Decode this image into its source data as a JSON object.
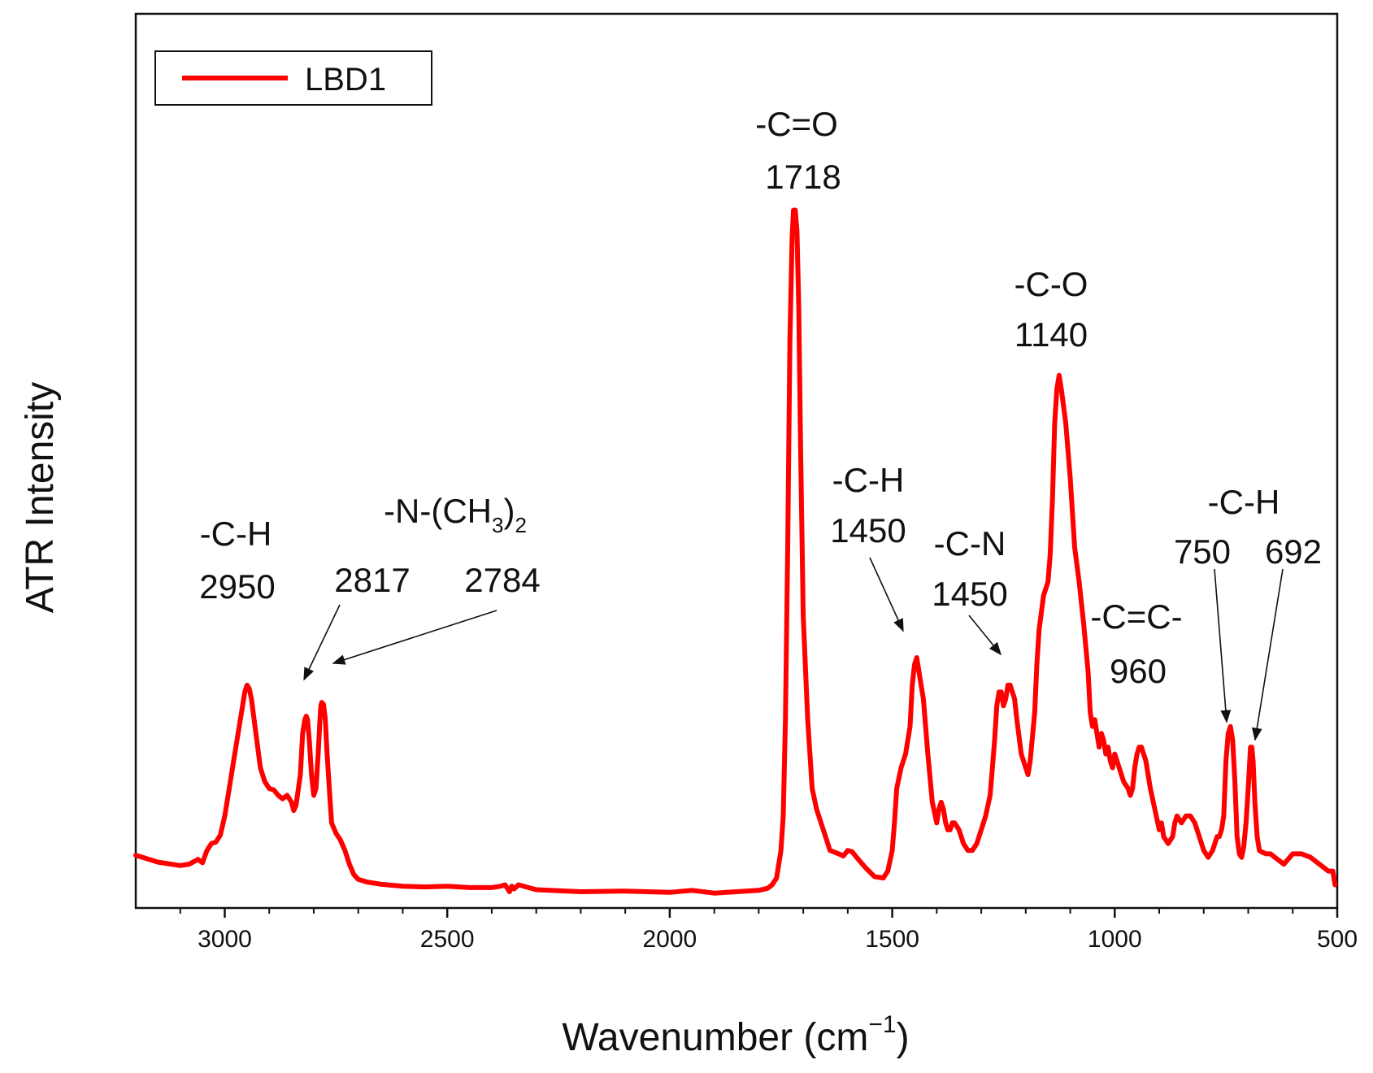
{
  "chart_data": {
    "type": "line",
    "xlabel": "Wavenumber (cm",
    "xlabel_sup": "−1",
    "xlabel_end": ")",
    "ylabel": "ATR Intensity",
    "xlim": [
      3200,
      500
    ],
    "x_reversed": true,
    "ylim": [
      0,
      1
    ],
    "y_tick_labels_shown": false,
    "x_ticks": [
      3000,
      2500,
      2000,
      1500,
      1000,
      500
    ],
    "legend": {
      "position": "top-left",
      "label": "LBD1"
    },
    "series": [
      {
        "name": "LBD1",
        "color": "#ff0000",
        "x": [
          3200,
          3150,
          3100,
          3080,
          3060,
          3050,
          3040,
          3030,
          3020,
          3010,
          3000,
          2990,
          2980,
          2970,
          2960,
          2955,
          2950,
          2945,
          2940,
          2930,
          2920,
          2910,
          2900,
          2890,
          2880,
          2870,
          2860,
          2850,
          2845,
          2840,
          2830,
          2825,
          2820,
          2817,
          2814,
          2810,
          2805,
          2800,
          2795,
          2790,
          2786,
          2784,
          2782,
          2778,
          2774,
          2770,
          2765,
          2760,
          2750,
          2740,
          2730,
          2720,
          2710,
          2700,
          2680,
          2650,
          2600,
          2550,
          2500,
          2450,
          2400,
          2380,
          2370,
          2360,
          2355,
          2350,
          2340,
          2300,
          2200,
          2100,
          2000,
          1950,
          1900,
          1850,
          1800,
          1780,
          1770,
          1760,
          1750,
          1745,
          1740,
          1735,
          1730,
          1725,
          1722,
          1718,
          1714,
          1710,
          1706,
          1700,
          1690,
          1680,
          1670,
          1660,
          1650,
          1640,
          1620,
          1610,
          1600,
          1590,
          1580,
          1560,
          1540,
          1520,
          1510,
          1500,
          1495,
          1490,
          1480,
          1470,
          1460,
          1455,
          1450,
          1445,
          1440,
          1430,
          1420,
          1410,
          1400,
          1395,
          1390,
          1385,
          1380,
          1375,
          1370,
          1365,
          1360,
          1350,
          1340,
          1330,
          1320,
          1310,
          1300,
          1290,
          1280,
          1275,
          1270,
          1265,
          1260,
          1255,
          1250,
          1245,
          1240,
          1235,
          1230,
          1225,
          1220,
          1210,
          1200,
          1195,
          1190,
          1180,
          1175,
          1170,
          1160,
          1150,
          1145,
          1140,
          1135,
          1130,
          1125,
          1120,
          1110,
          1100,
          1090,
          1080,
          1070,
          1060,
          1055,
          1050,
          1045,
          1040,
          1035,
          1030,
          1025,
          1020,
          1015,
          1010,
          1005,
          1000,
          990,
          980,
          970,
          965,
          960,
          955,
          950,
          945,
          940,
          930,
          920,
          910,
          900,
          895,
          890,
          880,
          870,
          865,
          860,
          850,
          840,
          830,
          820,
          810,
          800,
          790,
          780,
          770,
          765,
          760,
          755,
          750,
          745,
          740,
          735,
          730,
          725,
          720,
          715,
          710,
          705,
          700,
          695,
          692,
          689,
          685,
          680,
          675,
          670,
          660,
          650,
          640,
          630,
          620,
          600,
          580,
          560,
          540,
          520,
          510,
          505
        ],
        "y": [
          0.053,
          0.043,
          0.038,
          0.04,
          0.047,
          0.042,
          0.06,
          0.07,
          0.072,
          0.082,
          0.11,
          0.15,
          0.19,
          0.23,
          0.27,
          0.29,
          0.3,
          0.295,
          0.28,
          0.23,
          0.18,
          0.16,
          0.15,
          0.148,
          0.14,
          0.135,
          0.14,
          0.13,
          0.118,
          0.125,
          0.17,
          0.23,
          0.25,
          0.255,
          0.25,
          0.22,
          0.17,
          0.14,
          0.15,
          0.2,
          0.25,
          0.27,
          0.275,
          0.272,
          0.25,
          0.2,
          0.15,
          0.1,
          0.085,
          0.075,
          0.06,
          0.04,
          0.025,
          0.018,
          0.014,
          0.011,
          0.008,
          0.007,
          0.008,
          0.006,
          0.006,
          0.008,
          0.01,
          0.0,
          0.008,
          0.004,
          0.01,
          0.003,
          0.0,
          0.001,
          -0.001,
          0.002,
          -0.002,
          0.0,
          0.002,
          0.005,
          0.01,
          0.02,
          0.06,
          0.11,
          0.25,
          0.5,
          0.8,
          0.95,
          0.99,
          0.99,
          0.96,
          0.85,
          0.65,
          0.4,
          0.25,
          0.15,
          0.12,
          0.1,
          0.08,
          0.06,
          0.055,
          0.052,
          0.06,
          0.058,
          0.05,
          0.035,
          0.022,
          0.02,
          0.03,
          0.06,
          0.1,
          0.15,
          0.18,
          0.2,
          0.24,
          0.3,
          0.33,
          0.34,
          0.32,
          0.28,
          0.2,
          0.13,
          0.1,
          0.12,
          0.13,
          0.12,
          0.1,
          0.09,
          0.09,
          0.1,
          0.1,
          0.09,
          0.07,
          0.06,
          0.06,
          0.07,
          0.09,
          0.11,
          0.14,
          0.18,
          0.22,
          0.27,
          0.29,
          0.29,
          0.27,
          0.28,
          0.3,
          0.3,
          0.29,
          0.28,
          0.25,
          0.2,
          0.18,
          0.17,
          0.19,
          0.26,
          0.33,
          0.38,
          0.43,
          0.45,
          0.49,
          0.57,
          0.68,
          0.73,
          0.75,
          0.73,
          0.68,
          0.6,
          0.5,
          0.45,
          0.39,
          0.32,
          0.26,
          0.24,
          0.25,
          0.23,
          0.21,
          0.23,
          0.22,
          0.2,
          0.21,
          0.19,
          0.18,
          0.2,
          0.18,
          0.16,
          0.15,
          0.14,
          0.15,
          0.18,
          0.2,
          0.21,
          0.21,
          0.19,
          0.15,
          0.12,
          0.09,
          0.1,
          0.08,
          0.07,
          0.08,
          0.1,
          0.11,
          0.1,
          0.11,
          0.11,
          0.1,
          0.08,
          0.06,
          0.05,
          0.06,
          0.08,
          0.08,
          0.09,
          0.11,
          0.19,
          0.23,
          0.24,
          0.22,
          0.16,
          0.08,
          0.055,
          0.05,
          0.065,
          0.1,
          0.15,
          0.21,
          0.21,
          0.19,
          0.13,
          0.08,
          0.06,
          0.058,
          0.055,
          0.055,
          0.05,
          0.045,
          0.04,
          0.055,
          0.055,
          0.05,
          0.04,
          0.03,
          0.03,
          0.01
        ]
      }
    ],
    "annotations": [
      {
        "lines": [
          "-C-H",
          "2950"
        ]
      },
      {
        "label": "-N-(CH",
        "sub": "3",
        "label_end": ")",
        "sub2": "2"
      },
      {
        "lines": [
          "2817"
        ]
      },
      {
        "lines": [
          "2784"
        ]
      },
      {
        "lines": [
          "-C=O",
          "1718"
        ]
      },
      {
        "lines": [
          "-C-H",
          "1450"
        ]
      },
      {
        "lines": [
          "-C-N",
          "1450"
        ]
      },
      {
        "lines": [
          "-C-O",
          "1140"
        ]
      },
      {
        "lines": [
          "-C=C-",
          "960"
        ]
      },
      {
        "lines": [
          "-C-H"
        ]
      },
      {
        "lines": [
          "750"
        ]
      },
      {
        "lines": [
          "692"
        ]
      }
    ]
  }
}
